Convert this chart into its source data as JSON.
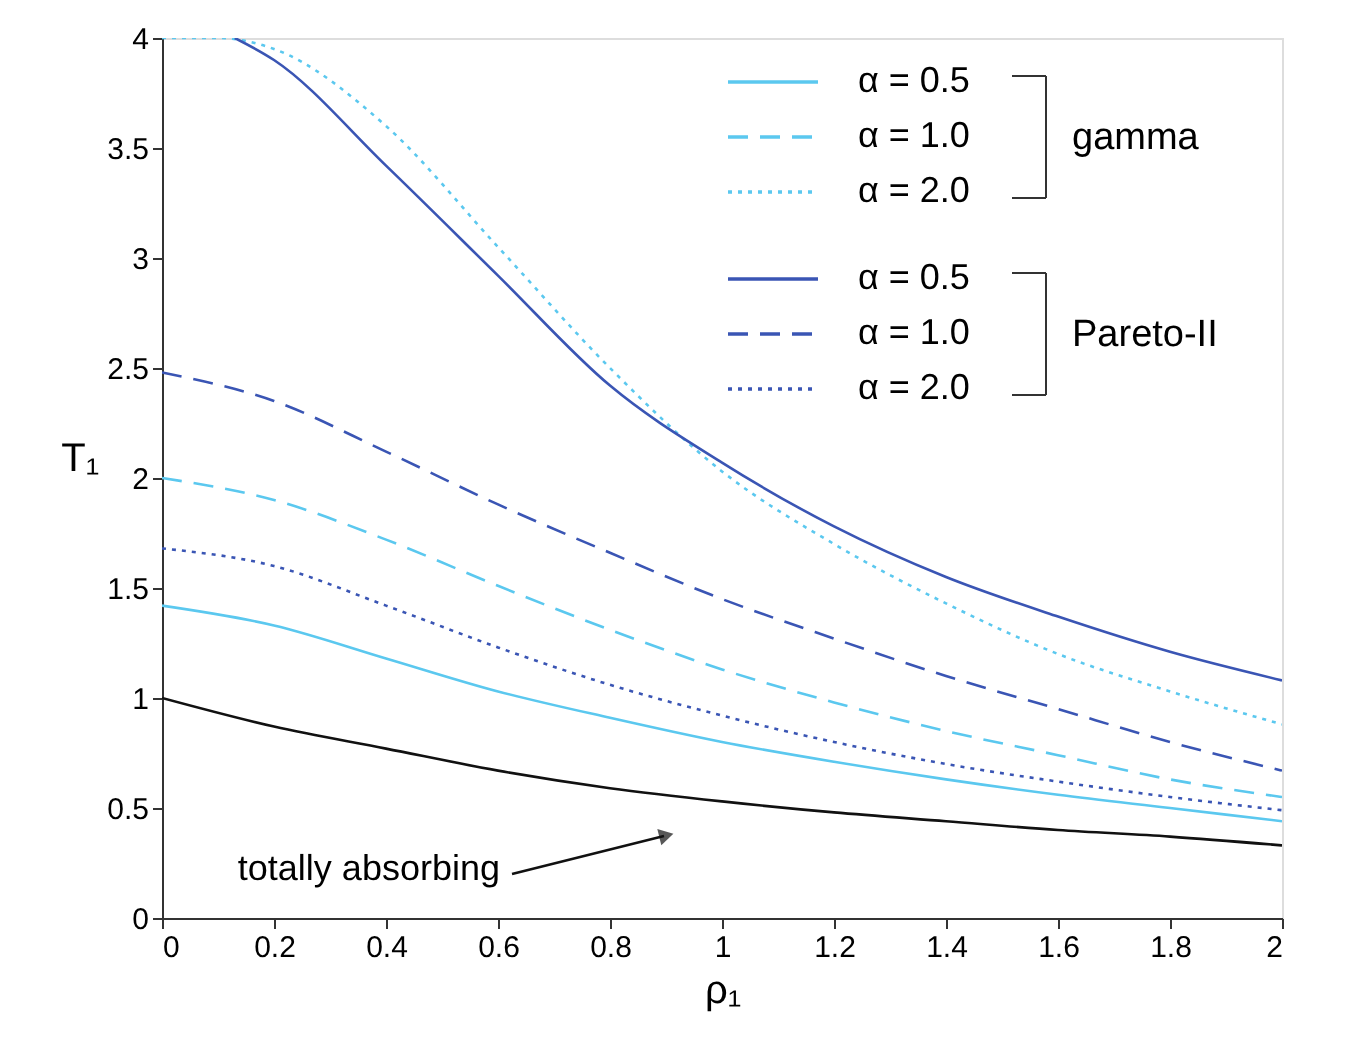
{
  "chart_data": {
    "type": "line",
    "xlabel": "ρ₁",
    "ylabel": "T₁",
    "xlim": [
      0,
      2
    ],
    "ylim": [
      0,
      4
    ],
    "xticks": [
      0,
      0.2,
      0.4,
      0.6,
      0.8,
      1,
      1.2,
      1.4,
      1.6,
      1.8,
      2
    ],
    "yticks": [
      0,
      0.5,
      1,
      1.5,
      2,
      2.5,
      3,
      3.5,
      4
    ],
    "grid": false,
    "legend": "top right",
    "marker": "none",
    "series": [
      {
        "name": "α = 0.5",
        "color": "#5bc8ef",
        "line_style": "solid",
        "x": [
          0,
          0.2,
          0.4,
          0.6,
          0.8,
          1,
          1.2,
          1.4,
          1.6,
          1.8,
          2
        ],
        "values": [
          1.42,
          1.33,
          1.18,
          1.03,
          0.91,
          0.8,
          0.71,
          0.63,
          0.56,
          0.5,
          0.44
        ]
      },
      {
        "name": "α = 1.0",
        "color": "#5bc8ef",
        "line_style": "dashed",
        "x": [
          0,
          0.2,
          0.4,
          0.6,
          0.8,
          1,
          1.2,
          1.4,
          1.6,
          1.8,
          2
        ],
        "values": [
          2.0,
          1.9,
          1.72,
          1.51,
          1.31,
          1.13,
          0.98,
          0.85,
          0.74,
          0.63,
          0.55
        ]
      },
      {
        "name": "α = 2.0",
        "color": "#5bc8ef",
        "line_style": "dotted",
        "x": [
          0,
          0.1,
          0.2,
          0.4,
          0.6,
          0.8,
          1,
          1.2,
          1.4,
          1.6,
          1.8,
          2
        ],
        "values": [
          4.0,
          4.0,
          3.95,
          3.6,
          3.05,
          2.5,
          2.03,
          1.7,
          1.43,
          1.2,
          1.03,
          0.88
        ]
      },
      {
        "name": "α = 0.5",
        "color": "#3a55b4",
        "line_style": "solid",
        "x": [
          0.13,
          0.2,
          0.4,
          0.6,
          0.8,
          1,
          1.2,
          1.4,
          1.6,
          1.8,
          2
        ],
        "values": [
          4.0,
          3.9,
          3.42,
          2.92,
          2.42,
          2.07,
          1.78,
          1.55,
          1.37,
          1.21,
          1.08
        ]
      },
      {
        "name": "α = 1.0",
        "color": "#3a55b4",
        "line_style": "dashed",
        "x": [
          0,
          0.2,
          0.4,
          0.6,
          0.8,
          1,
          1.2,
          1.4,
          1.6,
          1.8,
          2
        ],
        "values": [
          2.48,
          2.35,
          2.12,
          1.88,
          1.66,
          1.45,
          1.27,
          1.1,
          0.95,
          0.8,
          0.67
        ]
      },
      {
        "name": "α = 2.0",
        "color": "#3a55b4",
        "line_style": "dotted",
        "x": [
          0,
          0.2,
          0.4,
          0.6,
          0.8,
          1,
          1.2,
          1.4,
          1.6,
          1.8,
          2
        ],
        "values": [
          1.68,
          1.6,
          1.42,
          1.23,
          1.06,
          0.92,
          0.8,
          0.7,
          0.62,
          0.55,
          0.49
        ]
      },
      {
        "color": "#111111",
        "line_style": "solid",
        "x": [
          0,
          0.2,
          0.4,
          0.6,
          0.8,
          1,
          1.2,
          1.4,
          1.6,
          1.8,
          2
        ],
        "values": [
          1.0,
          0.87,
          0.77,
          0.67,
          0.59,
          0.53,
          0.48,
          0.44,
          0.4,
          0.37,
          0.33
        ]
      }
    ],
    "annotations": [
      "totally absorbing",
      "gamma",
      "Pareto-II"
    ]
  }
}
